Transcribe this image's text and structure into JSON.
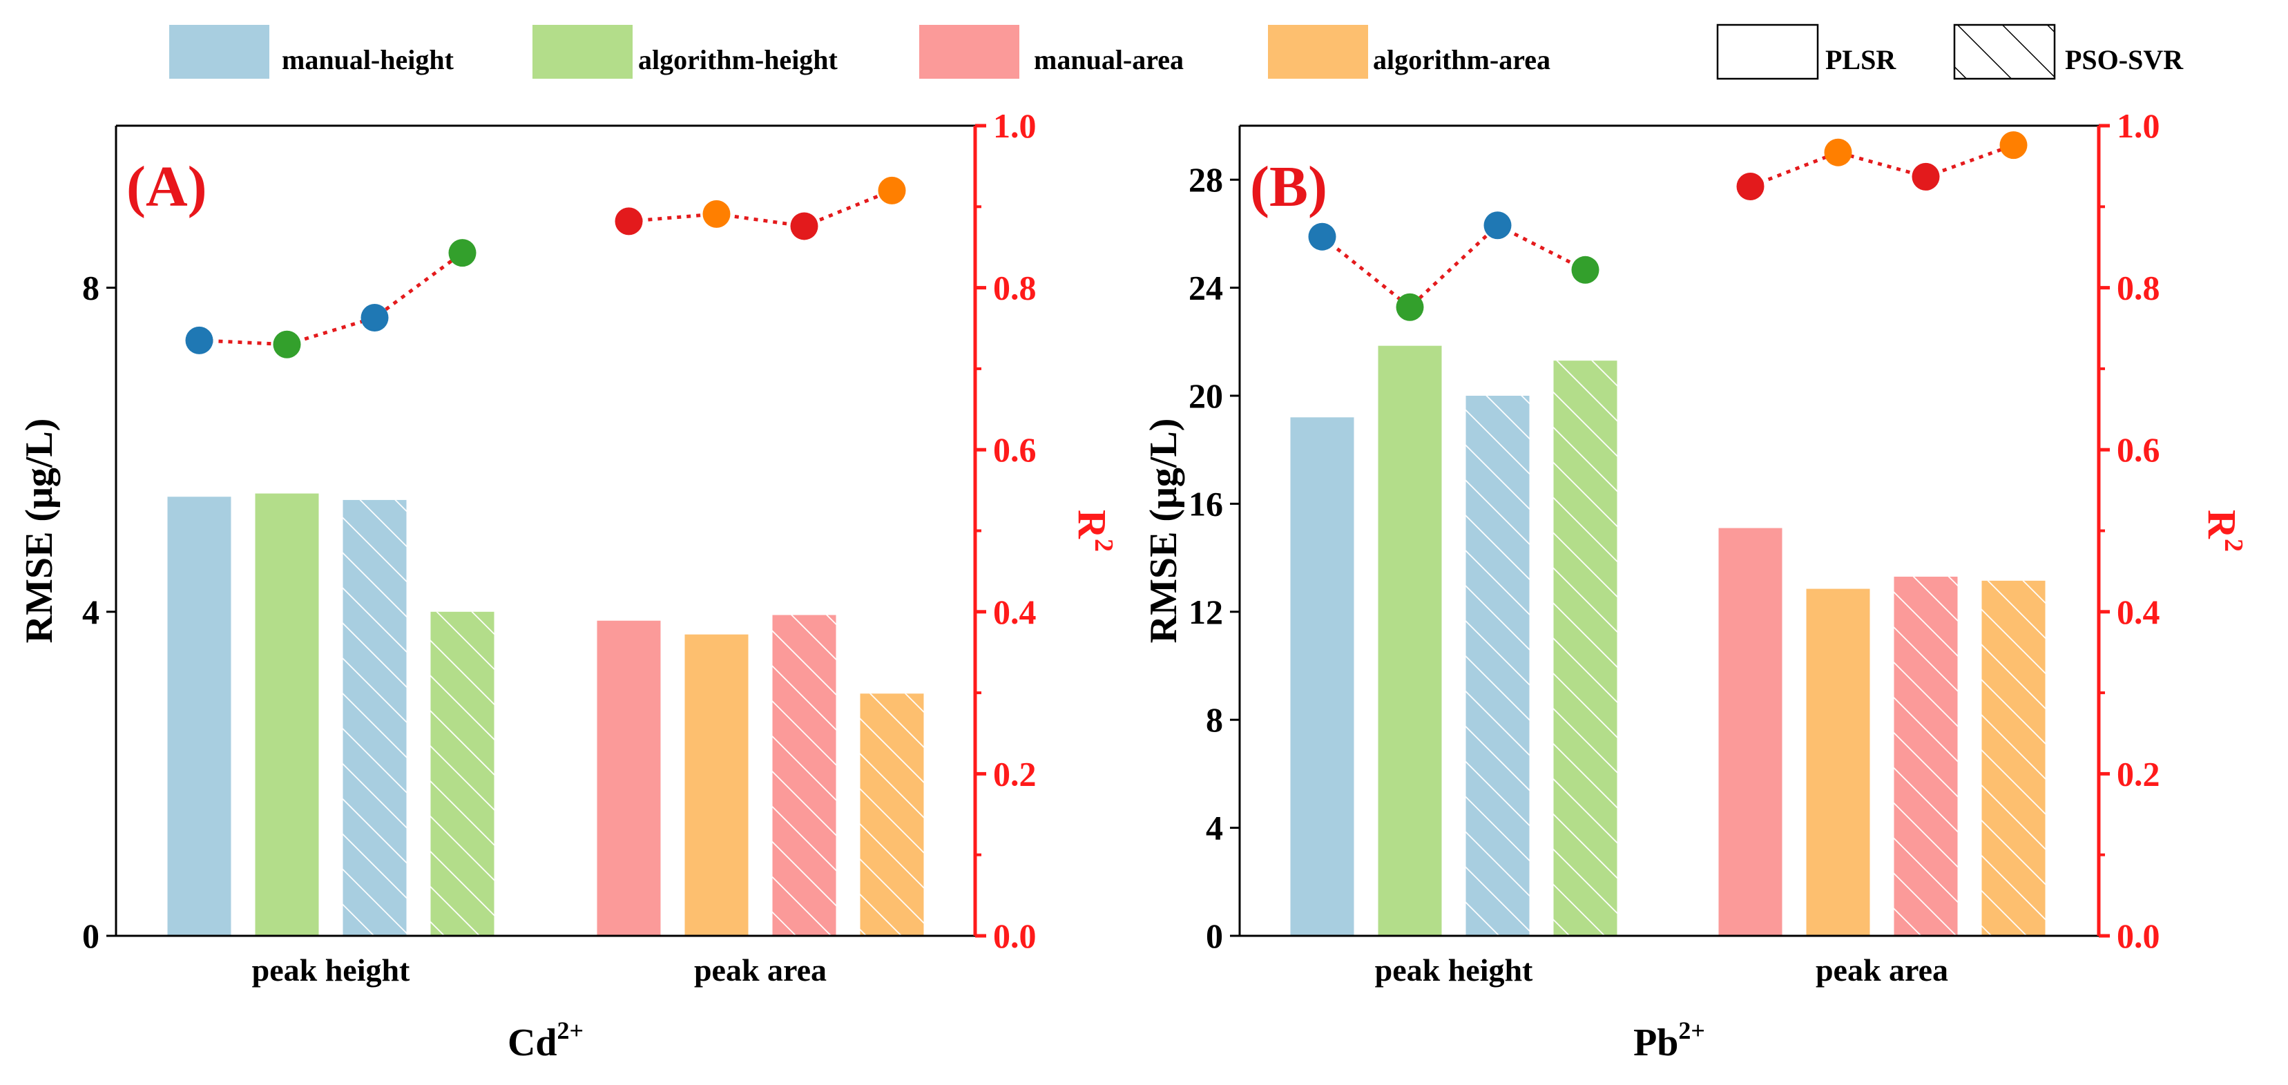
{
  "legend": {
    "items": [
      {
        "label": "manual-height",
        "color": "#a8cee0",
        "style": "solid"
      },
      {
        "label": "algorithm-height",
        "color": "#b3dd8a",
        "style": "solid"
      },
      {
        "label": "manual-area",
        "color": "#fb9a99",
        "style": "solid"
      },
      {
        "label": "algorithm-area",
        "color": "#fdbf6f",
        "style": "solid"
      },
      {
        "label": "PLSR",
        "color": "#ffffff",
        "style": "outline"
      },
      {
        "label": "PSO-SVR",
        "color": "#ffffff",
        "style": "hatched"
      }
    ]
  },
  "colors": {
    "r2_axis": "#ff1a1a",
    "r2_line": "#e41a1c",
    "panel_label": "#e8161b",
    "dot_blue": "#1f78b4",
    "dot_green": "#33a02c",
    "dot_red": "#e31a1c",
    "dot_orange": "#ff7f00"
  },
  "chart_data": [
    {
      "type": "bar",
      "panel_label": "(A)",
      "xlabel_base": "Cd",
      "xlabel_sup": "2+",
      "ylabel": "RMSE (μg/L)",
      "y2label_base": "R",
      "y2label_sup": "2",
      "ylim": [
        0,
        10
      ],
      "yticks": [
        "0",
        "4",
        "8"
      ],
      "y2lim": [
        0.0,
        1.0
      ],
      "y2ticks": [
        "0.0",
        "0.2",
        "0.4",
        "0.6",
        "0.8",
        "1.0"
      ],
      "groups": [
        "peak height",
        "peak area"
      ],
      "series": [
        {
          "name": "manual-height PLSR",
          "group": "peak height",
          "color": "#a8cee0",
          "hatch": false,
          "rmse": 5.42,
          "r2": 0.735,
          "dot": "#1f78b4"
        },
        {
          "name": "algorithm-height PLSR",
          "group": "peak height",
          "color": "#b3dd8a",
          "hatch": false,
          "rmse": 5.46,
          "r2": 0.73,
          "dot": "#33a02c"
        },
        {
          "name": "manual-height PSO-SVR",
          "group": "peak height",
          "color": "#a8cee0",
          "hatch": true,
          "rmse": 5.38,
          "r2": 0.763,
          "dot": "#1f78b4"
        },
        {
          "name": "algorithm-height PSO-SVR",
          "group": "peak height",
          "color": "#b3dd8a",
          "hatch": true,
          "rmse": 4.0,
          "r2": 0.843,
          "dot": "#33a02c"
        },
        {
          "name": "manual-area PLSR",
          "group": "peak area",
          "color": "#fb9a99",
          "hatch": false,
          "rmse": 3.89,
          "r2": 0.882,
          "dot": "#e31a1c"
        },
        {
          "name": "algorithm-area PLSR",
          "group": "peak area",
          "color": "#fdbf6f",
          "hatch": false,
          "rmse": 3.72,
          "r2": 0.891,
          "dot": "#ff7f00"
        },
        {
          "name": "manual-area PSO-SVR",
          "group": "peak area",
          "color": "#fb9a99",
          "hatch": true,
          "rmse": 3.96,
          "r2": 0.876,
          "dot": "#e31a1c"
        },
        {
          "name": "algorithm-area PSO-SVR",
          "group": "peak area",
          "color": "#fdbf6f",
          "hatch": true,
          "rmse": 2.99,
          "r2": 0.92,
          "dot": "#ff7f00"
        }
      ]
    },
    {
      "type": "bar",
      "panel_label": "(B)",
      "xlabel_base": "Pb",
      "xlabel_sup": "2+",
      "ylabel": "RMSE (μg/L)",
      "y2label_base": "R",
      "y2label_sup": "2",
      "ylim": [
        0,
        30
      ],
      "yticks": [
        "0",
        "4",
        "8",
        "12",
        "16",
        "20",
        "24",
        "28"
      ],
      "y2lim": [
        0.0,
        1.0
      ],
      "y2ticks": [
        "0.0",
        "0.2",
        "0.4",
        "0.6",
        "0.8",
        "1.0"
      ],
      "groups": [
        "peak height",
        "peak area"
      ],
      "series": [
        {
          "name": "manual-height PLSR",
          "group": "peak height",
          "color": "#a8cee0",
          "hatch": false,
          "rmse": 19.2,
          "r2": 0.863,
          "dot": "#1f78b4"
        },
        {
          "name": "algorithm-height PLSR",
          "group": "peak height",
          "color": "#b3dd8a",
          "hatch": false,
          "rmse": 21.85,
          "r2": 0.776,
          "dot": "#33a02c"
        },
        {
          "name": "manual-height PSO-SVR",
          "group": "peak height",
          "color": "#a8cee0",
          "hatch": true,
          "rmse": 20.0,
          "r2": 0.877,
          "dot": "#1f78b4"
        },
        {
          "name": "algorithm-height PSO-SVR",
          "group": "peak height",
          "color": "#b3dd8a",
          "hatch": true,
          "rmse": 21.3,
          "r2": 0.822,
          "dot": "#33a02c"
        },
        {
          "name": "manual-area PLSR",
          "group": "peak area",
          "color": "#fb9a99",
          "hatch": false,
          "rmse": 15.1,
          "r2": 0.925,
          "dot": "#e31a1c"
        },
        {
          "name": "algorithm-area PLSR",
          "group": "peak area",
          "color": "#fdbf6f",
          "hatch": false,
          "rmse": 12.85,
          "r2": 0.967,
          "dot": "#ff7f00"
        },
        {
          "name": "manual-area PSO-SVR",
          "group": "peak area",
          "color": "#fb9a99",
          "hatch": true,
          "rmse": 13.3,
          "r2": 0.937,
          "dot": "#e31a1c"
        },
        {
          "name": "algorithm-area PSO-SVR",
          "group": "peak area",
          "color": "#fdbf6f",
          "hatch": true,
          "rmse": 13.15,
          "r2": 0.976,
          "dot": "#ff7f00"
        }
      ]
    }
  ]
}
